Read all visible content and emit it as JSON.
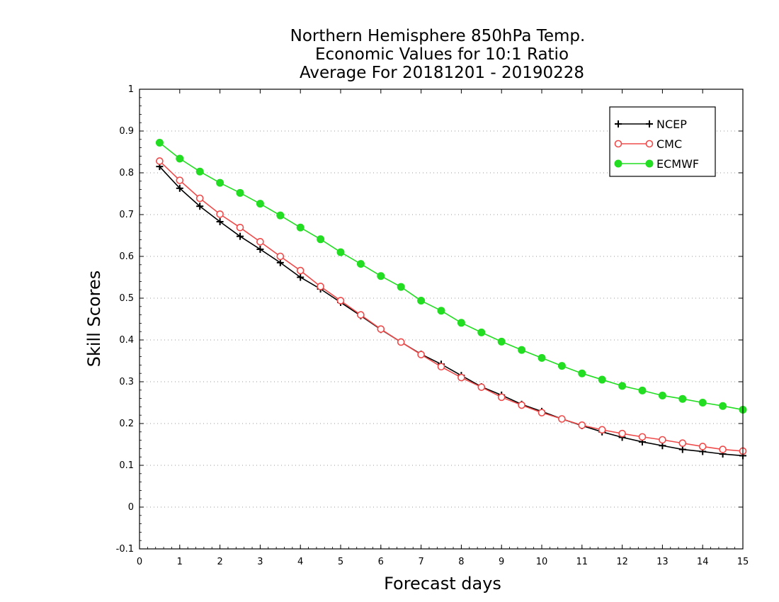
{
  "chart_data": {
    "type": "line",
    "title_lines": [
      "Northern Hemisphere 850hPa Temp.",
      "Economic Values for 10:1 Ratio",
      "Average For 20181201 - 20190228"
    ],
    "xlabel": "Forecast days",
    "ylabel": "Skill Scores",
    "xlim": [
      0,
      15
    ],
    "ylim": [
      -0.1,
      1
    ],
    "x_ticks": [
      "0",
      "1",
      "2",
      "3",
      "4",
      "5",
      "6",
      "7",
      "8",
      "9",
      "10",
      "11",
      "12",
      "13",
      "14",
      "15"
    ],
    "y_ticks": [
      "-0.1",
      "0",
      "0.1",
      "0.2",
      "0.3",
      "0.4",
      "0.5",
      "0.6",
      "0.7",
      "0.8",
      "0.9",
      "1"
    ],
    "grid": "horizontal dotted",
    "legend_position": "top-right",
    "x": [
      0.5,
      1,
      1.5,
      2,
      2.5,
      3,
      3.5,
      4,
      4.5,
      5,
      5.5,
      6,
      6.5,
      7,
      7.5,
      8,
      8.5,
      9,
      9.5,
      10,
      10.5,
      11,
      11.5,
      12,
      12.5,
      13,
      13.5,
      14,
      14.5,
      15
    ],
    "series": [
      {
        "name": "NCEP",
        "color": "#000000",
        "marker": "plus",
        "values": [
          0.815,
          0.763,
          0.72,
          0.683,
          0.648,
          0.617,
          0.585,
          0.55,
          0.522,
          0.49,
          0.458,
          0.425,
          0.395,
          0.366,
          0.342,
          0.315,
          0.288,
          0.268,
          0.246,
          0.229,
          0.211,
          0.195,
          0.18,
          0.167,
          0.156,
          0.147,
          0.138,
          0.133,
          0.127,
          0.123
        ]
      },
      {
        "name": "CMC",
        "color": "#ef4b4b",
        "marker": "open-circle",
        "values": [
          0.828,
          0.782,
          0.739,
          0.701,
          0.669,
          0.635,
          0.6,
          0.566,
          0.528,
          0.494,
          0.46,
          0.426,
          0.395,
          0.365,
          0.336,
          0.31,
          0.287,
          0.263,
          0.244,
          0.226,
          0.211,
          0.196,
          0.185,
          0.176,
          0.168,
          0.161,
          0.153,
          0.145,
          0.138,
          0.134
        ]
      },
      {
        "name": "ECMWF",
        "color": "#22dd22",
        "marker": "filled-circle",
        "values": [
          0.872,
          0.834,
          0.803,
          0.776,
          0.752,
          0.726,
          0.698,
          0.669,
          0.641,
          0.61,
          0.582,
          0.553,
          0.527,
          0.494,
          0.47,
          0.441,
          0.418,
          0.396,
          0.376,
          0.357,
          0.338,
          0.32,
          0.305,
          0.29,
          0.279,
          0.267,
          0.259,
          0.25,
          0.242,
          0.233
        ]
      }
    ]
  }
}
